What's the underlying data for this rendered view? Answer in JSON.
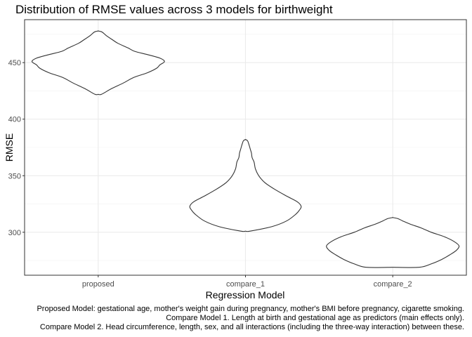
{
  "chart_data": {
    "type": "violin",
    "title": "Distribution of RMSE values across 3 models for birthweight",
    "xlabel": "Regression Model",
    "ylabel": "RMSE",
    "categories": [
      "proposed",
      "compare_1",
      "compare_2"
    ],
    "ylim": [
      262,
      488
    ],
    "yticks": [
      300,
      350,
      400,
      450
    ],
    "grid": true,
    "theme": "bw",
    "line_color": "#333333",
    "violins": [
      {
        "category": "proposed",
        "profile": [
          [
            422,
            0.0
          ],
          [
            422,
            0.05
          ],
          [
            427,
            0.2
          ],
          [
            432,
            0.38
          ],
          [
            437,
            0.54
          ],
          [
            441,
            0.74
          ],
          [
            445,
            0.88
          ],
          [
            448,
            0.93
          ],
          [
            451,
            1.0
          ],
          [
            454,
            0.93
          ],
          [
            457,
            0.75
          ],
          [
            460,
            0.55
          ],
          [
            463,
            0.45
          ],
          [
            467,
            0.3
          ],
          [
            470,
            0.22
          ],
          [
            474,
            0.12
          ],
          [
            477,
            0.06
          ],
          [
            478,
            0.0
          ]
        ]
      },
      {
        "category": "compare_1",
        "profile": [
          [
            301,
            0.0
          ],
          [
            301,
            0.07
          ],
          [
            305,
            0.4
          ],
          [
            310,
            0.62
          ],
          [
            316,
            0.76
          ],
          [
            320,
            0.82
          ],
          [
            323,
            0.84
          ],
          [
            327,
            0.78
          ],
          [
            332,
            0.62
          ],
          [
            338,
            0.44
          ],
          [
            344,
            0.29
          ],
          [
            350,
            0.2
          ],
          [
            356,
            0.15
          ],
          [
            362,
            0.13
          ],
          [
            366,
            0.1
          ],
          [
            370,
            0.09
          ],
          [
            374,
            0.07
          ],
          [
            378,
            0.05
          ],
          [
            381,
            0.03
          ],
          [
            382,
            0.0
          ]
        ]
      },
      {
        "category": "compare_2",
        "profile": [
          [
            269,
            0.0
          ],
          [
            269,
            0.4
          ],
          [
            272,
            0.58
          ],
          [
            276,
            0.74
          ],
          [
            280,
            0.86
          ],
          [
            284,
            0.96
          ],
          [
            288,
            1.0
          ],
          [
            292,
            0.92
          ],
          [
            296,
            0.78
          ],
          [
            300,
            0.58
          ],
          [
            304,
            0.42
          ],
          [
            307,
            0.27
          ],
          [
            310,
            0.15
          ],
          [
            312,
            0.08
          ],
          [
            313,
            0.0
          ]
        ]
      }
    ]
  },
  "caption": {
    "lines": [
      "Proposed Model: gestational age, mother's weight gain during pregnancy, mother's BMI before pregnancy, cigarette smoking.",
      "Compare Model 1. Length at birth and gestational age as predictors (main effects only).",
      "Compare Model 2. Head circumference, length, sex, and all interactions (including the three-way interaction) between these."
    ]
  }
}
